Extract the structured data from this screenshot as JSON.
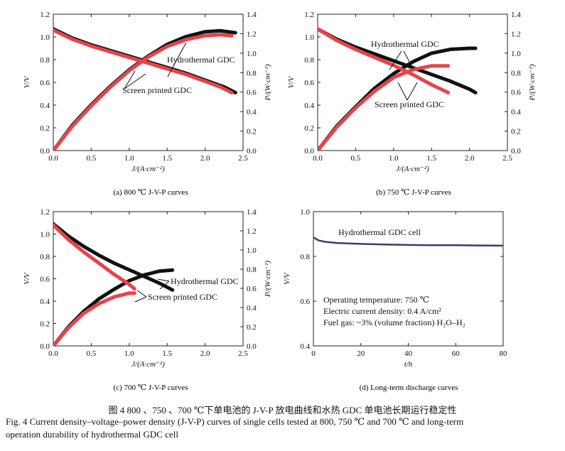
{
  "figure_caption": {
    "zh": "图 4    800 、750 、700 ℃下单电池的 J-V-P 放电曲线和水热 GDC 单电池长期运行稳定性",
    "en_line1": "Fig. 4   Current density–voltage–power density (J-V-P) curves of single cells tested at 800, 750 ℃ and 700 ℃ and long-term",
    "en_line2": "operation durability of hydrothermal GDC cell"
  },
  "colors": {
    "hydrothermal": "#111111",
    "screen_printed": "#e8424a",
    "durability": "#3a3d6e"
  },
  "chart_data": [
    {
      "type": "line",
      "panel_caption": "(a) 800 ℃ J-V-P curves",
      "xlabel": "J/(A·cm⁻²)",
      "ylabel": "V/V",
      "y2label": "P/(W·cm⁻²)",
      "xlim": [
        0,
        2.5
      ],
      "ylim": [
        0,
        1.2
      ],
      "y2lim": [
        0,
        1.4
      ],
      "xticks": [
        "0.0",
        "0.5",
        "1.0",
        "1.5",
        "2.0",
        "2.5"
      ],
      "yticks": [
        "0.0",
        "0.2",
        "0.4",
        "0.6",
        "0.8",
        "1.0",
        "1.2"
      ],
      "y2ticks": [
        "0.0",
        "0.2",
        "0.4",
        "0.6",
        "0.8",
        "1.0",
        "1.2",
        "1.4"
      ],
      "annotations": [
        "Hydrothermal GDC",
        "Screen printed GDC"
      ],
      "series": [
        {
          "name": "Hydrothermal GDC V",
          "axis": "left",
          "color": "#111111",
          "x": [
            0,
            0.25,
            0.5,
            0.75,
            1.0,
            1.25,
            1.5,
            1.75,
            2.0,
            2.25,
            2.4
          ],
          "y": [
            1.07,
            0.99,
            0.93,
            0.88,
            0.83,
            0.78,
            0.73,
            0.68,
            0.62,
            0.56,
            0.51
          ]
        },
        {
          "name": "Hydrothermal GDC P",
          "axis": "right",
          "color": "#111111",
          "x": [
            0,
            0.25,
            0.5,
            0.75,
            1.0,
            1.25,
            1.5,
            1.75,
            2.0,
            2.2,
            2.3,
            2.4
          ],
          "y": [
            0,
            0.26,
            0.47,
            0.66,
            0.83,
            0.97,
            1.09,
            1.17,
            1.22,
            1.23,
            1.22,
            1.21
          ]
        },
        {
          "name": "Screen printed GDC V",
          "axis": "left",
          "color": "#e8424a",
          "x": [
            0,
            0.25,
            0.5,
            0.75,
            1.0,
            1.25,
            1.5,
            1.75,
            2.0,
            2.2,
            2.35
          ],
          "y": [
            1.06,
            0.98,
            0.92,
            0.87,
            0.82,
            0.77,
            0.72,
            0.67,
            0.61,
            0.56,
            0.51
          ]
        },
        {
          "name": "Screen printed GDC P",
          "axis": "right",
          "color": "#e8424a",
          "x": [
            0,
            0.25,
            0.5,
            0.75,
            1.0,
            1.25,
            1.5,
            1.75,
            2.0,
            2.2,
            2.35
          ],
          "y": [
            0,
            0.25,
            0.46,
            0.65,
            0.82,
            0.96,
            1.07,
            1.14,
            1.18,
            1.19,
            1.18
          ]
        }
      ]
    },
    {
      "type": "line",
      "panel_caption": "(b) 750 ℃ J-V-P curves",
      "xlabel": "J/(A·cm⁻²)",
      "ylabel": "V/V",
      "y2label": "P/(W·cm⁻²)",
      "xlim": [
        0,
        2.5
      ],
      "ylim": [
        0,
        1.2
      ],
      "y2lim": [
        0,
        1.4
      ],
      "xticks": [
        "0.0",
        "0.5",
        "1.0",
        "1.5",
        "2.0",
        "2.5"
      ],
      "yticks": [
        "0.0",
        "0.2",
        "0.4",
        "0.6",
        "0.8",
        "1.0",
        "1.2"
      ],
      "y2ticks": [
        "0.0",
        "0.2",
        "0.4",
        "0.6",
        "0.8",
        "1.0",
        "1.2",
        "1.4"
      ],
      "annotations": [
        "Hydrothermal GDC",
        "Screen printed GDC"
      ],
      "series": [
        {
          "name": "Hydrothermal GDC V",
          "axis": "left",
          "color": "#111111",
          "x": [
            0,
            0.25,
            0.5,
            0.75,
            1.0,
            1.25,
            1.5,
            1.75,
            2.0,
            2.08
          ],
          "y": [
            1.07,
            0.98,
            0.91,
            0.85,
            0.79,
            0.73,
            0.67,
            0.61,
            0.54,
            0.51
          ]
        },
        {
          "name": "Hydrothermal GDC P",
          "axis": "right",
          "color": "#111111",
          "x": [
            0,
            0.25,
            0.5,
            0.75,
            1.0,
            1.25,
            1.5,
            1.75,
            2.0,
            2.08
          ],
          "y": [
            0,
            0.25,
            0.45,
            0.64,
            0.79,
            0.91,
            1.0,
            1.04,
            1.05,
            1.05
          ]
        },
        {
          "name": "Screen printed GDC V",
          "axis": "left",
          "color": "#e8424a",
          "x": [
            0,
            0.25,
            0.5,
            0.75,
            1.0,
            1.25,
            1.5,
            1.72
          ],
          "y": [
            1.07,
            0.97,
            0.89,
            0.82,
            0.75,
            0.67,
            0.58,
            0.51
          ]
        },
        {
          "name": "Screen printed GDC P",
          "axis": "right",
          "color": "#e8424a",
          "x": [
            0,
            0.25,
            0.5,
            0.75,
            1.0,
            1.25,
            1.5,
            1.72
          ],
          "y": [
            0,
            0.24,
            0.44,
            0.61,
            0.75,
            0.83,
            0.87,
            0.87
          ]
        }
      ]
    },
    {
      "type": "line",
      "panel_caption": "(c) 700 ℃ J-V-P curves",
      "xlabel": "J/(A·cm⁻²)",
      "ylabel": "V/V",
      "y2label": "P/(W·cm⁻²)",
      "xlim": [
        0,
        2.5
      ],
      "ylim": [
        0,
        1.2
      ],
      "y2lim": [
        0,
        1.4
      ],
      "xticks": [
        "0.0",
        "0.5",
        "1.0",
        "1.5",
        "2.0",
        "2.5"
      ],
      "yticks": [
        "0.0",
        "0.2",
        "0.4",
        "0.6",
        "0.8",
        "1.0",
        "1.2"
      ],
      "y2ticks": [
        "0.0",
        "0.2",
        "0.4",
        "0.6",
        "0.8",
        "1.0",
        "1.2",
        "1.4"
      ],
      "annotations": [
        "Hydrothermal GDC",
        "Screen printed GDC"
      ],
      "series": [
        {
          "name": "Hydrothermal GDC V",
          "axis": "left",
          "color": "#111111",
          "x": [
            0,
            0.2,
            0.4,
            0.6,
            0.8,
            1.0,
            1.2,
            1.4,
            1.57
          ],
          "y": [
            1.09,
            0.98,
            0.89,
            0.81,
            0.74,
            0.68,
            0.62,
            0.56,
            0.5
          ]
        },
        {
          "name": "Hydrothermal GDC P",
          "axis": "right",
          "color": "#111111",
          "x": [
            0,
            0.2,
            0.4,
            0.6,
            0.8,
            1.0,
            1.2,
            1.4,
            1.57
          ],
          "y": [
            0,
            0.2,
            0.36,
            0.49,
            0.59,
            0.68,
            0.74,
            0.78,
            0.79
          ]
        },
        {
          "name": "Screen printed GDC V",
          "axis": "left",
          "color": "#e8424a",
          "x": [
            0,
            0.2,
            0.4,
            0.6,
            0.8,
            1.0,
            1.07
          ],
          "y": [
            1.08,
            0.95,
            0.84,
            0.74,
            0.64,
            0.55,
            0.51
          ]
        },
        {
          "name": "Screen printed GDC P",
          "axis": "right",
          "color": "#e8424a",
          "x": [
            0,
            0.2,
            0.4,
            0.6,
            0.8,
            1.0,
            1.07
          ],
          "y": [
            0,
            0.19,
            0.34,
            0.44,
            0.51,
            0.55,
            0.55
          ]
        }
      ]
    },
    {
      "type": "line",
      "panel_caption": "(d) Long-term discharge curves",
      "xlabel": "t/h",
      "ylabel": "V/V",
      "xlim": [
        0,
        80
      ],
      "ylim": [
        0.4,
        1.0
      ],
      "xticks": [
        "0",
        "20",
        "40",
        "60",
        "80"
      ],
      "yticks": [
        "0.4",
        "0.6",
        "0.8",
        "1.0"
      ],
      "legend": "Hydrothermal GDC cell",
      "conditions": [
        "Operating temperature: 750 ℃",
        "Electric current density: 0.4 A/cm²",
        "Fuel gas: ~3% (volume fraction) H₂O–H₂"
      ],
      "series": [
        {
          "name": "Hydrothermal GDC cell",
          "color": "#3a3d6e",
          "x": [
            0,
            2,
            5,
            10,
            20,
            30,
            40,
            50,
            60,
            70,
            80
          ],
          "y": [
            0.885,
            0.872,
            0.865,
            0.86,
            0.856,
            0.853,
            0.851,
            0.85,
            0.85,
            0.849,
            0.848
          ]
        }
      ]
    }
  ]
}
